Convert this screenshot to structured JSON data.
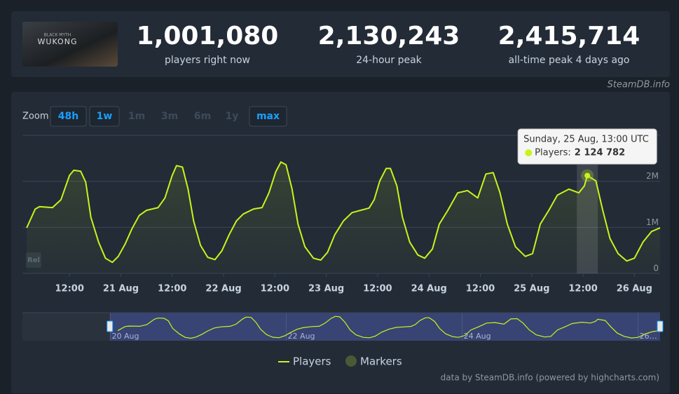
{
  "header": {
    "image_text": [
      "BLACK MYTH",
      "WUKONG"
    ],
    "stats": [
      {
        "value": "1,001,080",
        "label": "players right now"
      },
      {
        "value": "2,130,243",
        "label": "24-hour peak"
      },
      {
        "value": "2,415,714",
        "label": "all-time peak 4 days ago"
      }
    ],
    "source": "SteamDB.info"
  },
  "zoom": {
    "label": "Zoom",
    "buttons": [
      {
        "label": "48h",
        "enabled": true
      },
      {
        "label": "1w",
        "enabled": true
      },
      {
        "label": "1m",
        "enabled": false
      },
      {
        "label": "3m",
        "enabled": false
      },
      {
        "label": "6m",
        "enabled": false
      },
      {
        "label": "1y",
        "enabled": false
      },
      {
        "label": "max",
        "enabled": true
      }
    ]
  },
  "chart_data": {
    "type": "line",
    "series": [
      {
        "name": "Players",
        "color": "#c9f31d",
        "x": [
          2,
          4,
          5,
          8,
          10,
          12,
          13,
          14.6,
          15.8,
          17,
          18.8,
          20.4,
          22,
          23.4,
          25,
          26.6,
          28.3,
          30,
          32.7,
          34.3,
          36,
          37,
          38.4,
          39.7,
          41,
          42.6,
          44.3,
          46,
          47.6,
          49.3,
          51,
          52.6,
          55,
          57,
          58.6,
          60.2,
          61.4,
          62.6,
          64,
          65.4,
          67,
          69,
          70.7,
          72.3,
          74,
          76,
          78,
          80,
          82,
          83.2,
          84.5,
          86,
          87,
          88.5,
          89.8,
          91.5,
          93.4,
          95,
          96.8,
          98.4,
          100.4,
          102.7,
          105,
          107.4,
          109.3,
          111,
          112.6,
          114.3,
          116.2,
          118.5,
          120.2,
          122,
          124,
          126,
          128.7,
          131,
          132.3,
          133,
          135,
          136.6,
          138.3,
          140.2,
          142.2,
          144,
          146,
          148,
          150
        ],
        "values": [
          990000,
          1400000,
          1450000,
          1430000,
          1600000,
          2130000,
          2240000,
          2220000,
          1980000,
          1220000,
          680000,
          330000,
          240000,
          370000,
          640000,
          970000,
          1260000,
          1370000,
          1430000,
          1640000,
          2130000,
          2340000,
          2310000,
          1830000,
          1140000,
          610000,
          350000,
          300000,
          490000,
          840000,
          1140000,
          1290000,
          1400000,
          1430000,
          1750000,
          2210000,
          2420000,
          2360000,
          1830000,
          1070000,
          580000,
          330000,
          290000,
          460000,
          840000,
          1140000,
          1320000,
          1370000,
          1420000,
          1600000,
          2010000,
          2280000,
          2280000,
          1900000,
          1220000,
          680000,
          400000,
          330000,
          530000,
          1070000,
          1370000,
          1750000,
          1800000,
          1640000,
          2160000,
          2190000,
          1750000,
          1070000,
          580000,
          370000,
          430000,
          1070000,
          1370000,
          1700000,
          1830000,
          1750000,
          1900000,
          2124782,
          2010000,
          1370000,
          760000,
          430000,
          270000,
          330000,
          680000,
          910000,
          990000
        ]
      }
    ],
    "xlim": [
      1,
      150
    ],
    "xticks": [
      {
        "value": 12,
        "label": "12:00"
      },
      {
        "value": 24,
        "label": "21 Aug"
      },
      {
        "value": 36,
        "label": "12:00"
      },
      {
        "value": 48,
        "label": "22 Aug"
      },
      {
        "value": 60,
        "label": "12:00"
      },
      {
        "value": 72,
        "label": "23 Aug"
      },
      {
        "value": 84,
        "label": "12:00"
      },
      {
        "value": 96,
        "label": "24 Aug"
      },
      {
        "value": 108,
        "label": "12:00"
      },
      {
        "value": 120,
        "label": "25 Aug"
      },
      {
        "value": 132,
        "label": "12:00"
      },
      {
        "value": 144,
        "label": "26 Aug"
      }
    ],
    "ylim": [
      0,
      3000000
    ],
    "yticks": [
      0,
      {
        "value": 1000000,
        "label": "1M"
      },
      {
        "value": 2000000,
        "label": "2M"
      }
    ],
    "grid": true,
    "tooltip": {
      "x": 133,
      "title": "Sunday, 25 Aug, 13:00 UTC",
      "series_label": "Players:",
      "value_label": "2 124 782"
    },
    "rel_label": "Rel",
    "navigator": {
      "xlim": [
        -24,
        150
      ],
      "xticks": [
        {
          "value": 0,
          "label": "20 Aug"
        },
        {
          "value": 48,
          "label": "22 Aug"
        },
        {
          "value": 96,
          "label": "24 Aug"
        },
        {
          "value": 144,
          "label": "26…"
        }
      ]
    },
    "markers_legend": {
      "name": "Markers",
      "color": "#4b5a34"
    },
    "credits": "data by SteamDB.info (powered by highcharts.com)"
  }
}
